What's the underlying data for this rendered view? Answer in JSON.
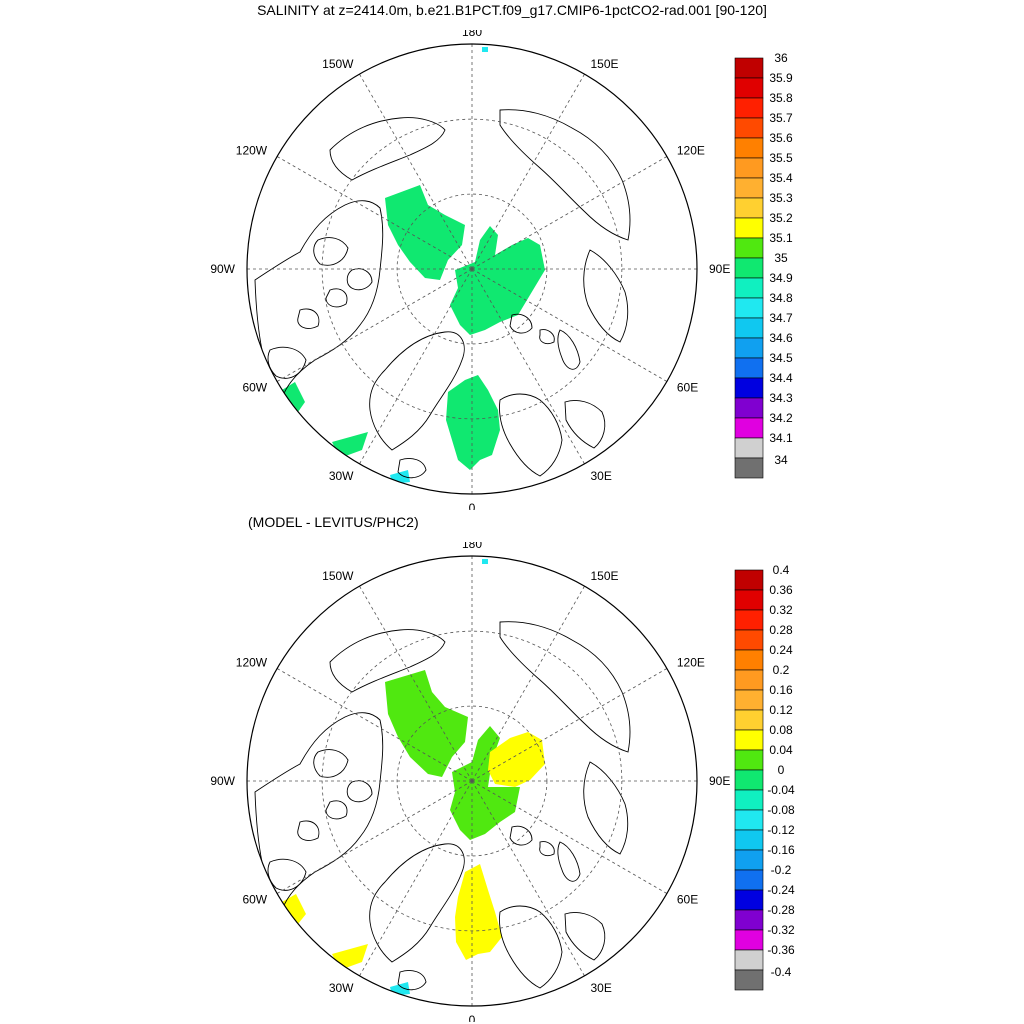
{
  "title": "SALINITY at z=2414.0m, b.e21.B1PCT.f09_g17.CMIP6-1pctCO2-rad.001 [90-120]",
  "subtitle": "(MODEL - LEVITUS/PHC2)",
  "map_labels": {
    "north": "180",
    "south": "0",
    "west": "90W",
    "east": "90E",
    "nw1": "150W",
    "ne1": "150E",
    "nw2": "120W",
    "ne2": "120E",
    "sw1": "60W",
    "se1": "60E",
    "sw2": "30W",
    "se2": "30E"
  },
  "top_colorbar": {
    "labels": [
      "36",
      "35.9",
      "35.8",
      "35.7",
      "35.6",
      "35.5",
      "35.4",
      "35.3",
      "35.2",
      "35.1",
      "35",
      "34.9",
      "34.8",
      "34.7",
      "34.6",
      "34.5",
      "34.4",
      "34.3",
      "34.2",
      "34.1",
      "34"
    ],
    "colors": [
      "#c00000",
      "#e00000",
      "#ff2000",
      "#ff4a00",
      "#ff8000",
      "#ff9a20",
      "#ffb030",
      "#ffd030",
      "#ffff00",
      "#50e810",
      "#10e870",
      "#10f0c0",
      "#20e8f0",
      "#10c8f0",
      "#10a0f0",
      "#1070f0",
      "#0000e0",
      "#8000d0",
      "#e000e0",
      "#d0d0d0",
      "#707070"
    ]
  },
  "bottom_colorbar": {
    "labels": [
      "0.4",
      "0.36",
      "0.32",
      "0.28",
      "0.24",
      "0.2",
      "0.16",
      "0.12",
      "0.08",
      "0.04",
      "0",
      "-0.04",
      "-0.08",
      "-0.12",
      "-0.16",
      "-0.2",
      "-0.24",
      "-0.28",
      "-0.32",
      "-0.36",
      "-0.4"
    ],
    "colors": [
      "#c00000",
      "#e00000",
      "#ff2000",
      "#ff4a00",
      "#ff8000",
      "#ff9a20",
      "#ffb030",
      "#ffd030",
      "#ffff00",
      "#50e810",
      "#10e870",
      "#10f0c0",
      "#20e8f0",
      "#10c8f0",
      "#10a0f0",
      "#1070f0",
      "#0000e0",
      "#8000d0",
      "#e000e0",
      "#d0d0d0",
      "#707070"
    ]
  },
  "fill_colors": {
    "top_main": "#10e870",
    "top_edge": "#20e8f0",
    "bottom_main": "#50e810",
    "bottom_high": "#ffff00",
    "bottom_edge": "#20e8f0"
  }
}
